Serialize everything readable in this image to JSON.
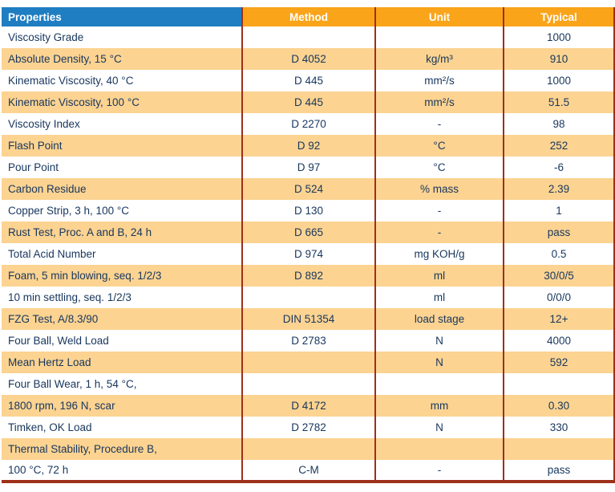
{
  "table": {
    "headers": [
      {
        "label": "Properties"
      },
      {
        "label": "Method"
      },
      {
        "label": "Unit"
      },
      {
        "label": "Typical"
      }
    ],
    "rows": [
      {
        "property": "Viscosity Grade",
        "method": "",
        "unit": "",
        "typical": "1000"
      },
      {
        "property": "Absolute Density, 15 °C",
        "method": "D 4052",
        "unit": "kg/m³",
        "typical": "910"
      },
      {
        "property": "Kinematic Viscosity, 40 °C",
        "method": "D 445",
        "unit": "mm²/s",
        "typical": "1000"
      },
      {
        "property": "Kinematic Viscosity, 100 °C",
        "method": "D 445",
        "unit": "mm²/s",
        "typical": "51.5"
      },
      {
        "property": "Viscosity Index",
        "method": "D 2270",
        "unit": "-",
        "typical": "98"
      },
      {
        "property": "Flash Point",
        "method": "D 92",
        "unit": "°C",
        "typical": "252"
      },
      {
        "property": "Pour Point",
        "method": "D 97",
        "unit": "°C",
        "typical": "-6"
      },
      {
        "property": "Carbon Residue",
        "method": "D 524",
        "unit": "% mass",
        "typical": "2.39"
      },
      {
        "property": "Copper Strip, 3 h, 100 °C",
        "method": "D 130",
        "unit": "-",
        "typical": "1"
      },
      {
        "property": "Rust Test, Proc. A and B, 24 h",
        "method": "D 665",
        "unit": "-",
        "typical": "pass"
      },
      {
        "property": "Total Acid Number",
        "method": "D 974",
        "unit": "mg KOH/g",
        "typical": "0.5"
      },
      {
        "property": "Foam, 5 min blowing, seq. 1/2/3",
        "method": "D 892",
        "unit": "ml",
        "typical": "30/0/5"
      },
      {
        "property": "10 min settling, seq. 1/2/3",
        "method": "",
        "unit": "ml",
        "typical": "0/0/0"
      },
      {
        "property": "FZG Test, A/8.3/90",
        "method": "DIN 51354",
        "unit": "load stage",
        "typical": "12+"
      },
      {
        "property": "Four Ball, Weld Load",
        "method": "D 2783",
        "unit": "N",
        "typical": "4000"
      },
      {
        "property": "Mean Hertz Load",
        "method": "",
        "unit": "N",
        "typical": "592"
      },
      {
        "property": "Four Ball Wear, 1 h, 54 °C,",
        "method": "",
        "unit": "",
        "typical": ""
      },
      {
        "property": "1800 rpm, 196 N, scar",
        "method": "D 4172",
        "unit": "mm",
        "typical": "0.30"
      },
      {
        "property": "Timken, OK Load",
        "method": "D 2782",
        "unit": "N",
        "typical": "330"
      },
      {
        "property": "Thermal Stability, Procedure B,",
        "method": "",
        "unit": "",
        "typical": ""
      },
      {
        "property": "100 °C, 72 h",
        "method": "C-M",
        "unit": "-",
        "typical": "pass"
      }
    ]
  },
  "colors": {
    "header_blue": "#1F7EC2",
    "header_orange": "#FAA41A",
    "row_tan": "#FCD391",
    "text_navy": "#17365D",
    "border_red": "#9E2F1B"
  }
}
